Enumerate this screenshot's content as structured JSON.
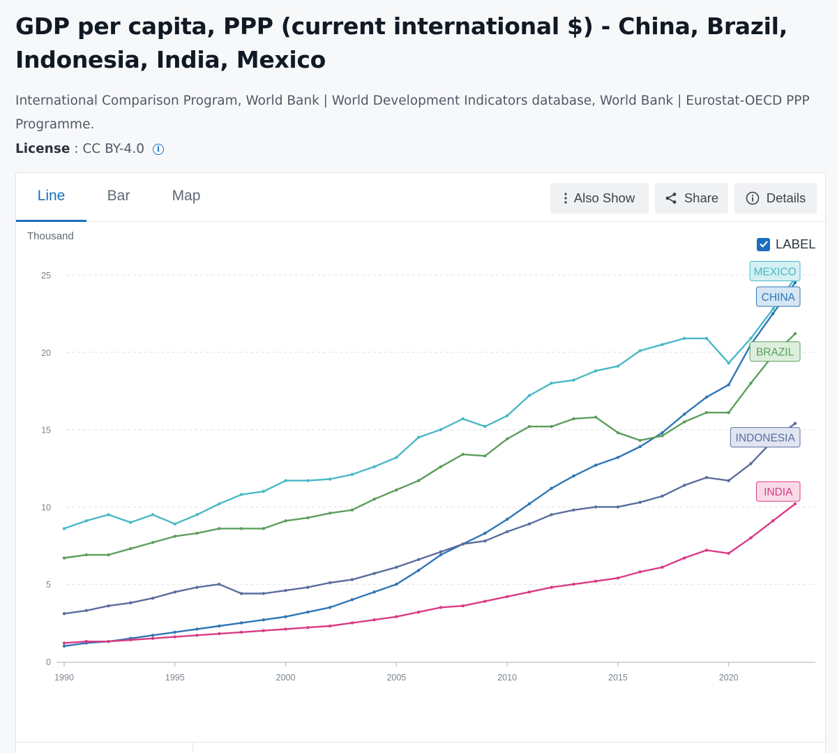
{
  "header": {
    "title": "GDP per capita, PPP (current international $) - China, Brazil, Indonesia, India, Mexico",
    "source": "International Comparison Program, World Bank | World Development Indicators database, World Bank | Eurostat-OECD PPP Programme.",
    "license_label": "License",
    "license_value": " : CC BY-4.0",
    "info_glyph": "i"
  },
  "tabs": [
    {
      "label": "Line",
      "active": true
    },
    {
      "label": "Bar",
      "active": false
    },
    {
      "label": "Map",
      "active": false
    }
  ],
  "toolbar": {
    "also_show": "Also Show",
    "share": "Share",
    "details": "Details"
  },
  "label_toggle": {
    "label": "LABEL",
    "checked": true
  },
  "colors": {
    "mexico": "#4ab8c6",
    "china": "#2e76b5",
    "brazil": "#5c9e5c",
    "indonesia": "#5b6d9e",
    "india": "#d93b85"
  },
  "chart_data": {
    "type": "line",
    "title": "GDP per capita, PPP (current international $) - China, Brazil, Indonesia, India, Mexico",
    "ylabel": "Thousand",
    "xlabel": "",
    "ylim": [
      0,
      25
    ],
    "xlim": [
      1990,
      2023
    ],
    "yticks": [
      0,
      5,
      10,
      15,
      20,
      25
    ],
    "xticks": [
      1990,
      1995,
      2000,
      2005,
      2010,
      2015,
      2020
    ],
    "grid": true,
    "x": [
      1990,
      1991,
      1992,
      1993,
      1994,
      1995,
      1996,
      1997,
      1998,
      1999,
      2000,
      2001,
      2002,
      2003,
      2004,
      2005,
      2006,
      2007,
      2008,
      2009,
      2010,
      2011,
      2012,
      2013,
      2014,
      2015,
      2016,
      2017,
      2018,
      2019,
      2020,
      2021,
      2022,
      2023
    ],
    "series": [
      {
        "name": "MEXICO",
        "color_key": "mexico",
        "values": [
          8.6,
          9.1,
          9.5,
          9.0,
          9.5,
          8.9,
          9.5,
          10.2,
          10.8,
          11.0,
          11.7,
          11.7,
          11.8,
          12.1,
          12.6,
          13.2,
          14.5,
          15.0,
          15.7,
          15.2,
          15.9,
          17.2,
          18.0,
          18.2,
          18.8,
          19.1,
          20.1,
          20.5,
          20.9,
          20.9,
          19.3,
          20.9,
          22.8,
          24.8
        ]
      },
      {
        "name": "CHINA",
        "color_key": "china",
        "values": [
          1.0,
          1.2,
          1.3,
          1.5,
          1.7,
          1.9,
          2.1,
          2.3,
          2.5,
          2.7,
          2.9,
          3.2,
          3.5,
          4.0,
          4.5,
          5.0,
          5.9,
          6.9,
          7.6,
          8.3,
          9.2,
          10.2,
          11.2,
          12.0,
          12.7,
          13.2,
          13.9,
          14.8,
          16.0,
          17.1,
          17.9,
          20.5,
          22.5,
          24.5
        ]
      },
      {
        "name": "BRAZIL",
        "color_key": "brazil",
        "values": [
          6.7,
          6.9,
          6.9,
          7.3,
          7.7,
          8.1,
          8.3,
          8.6,
          8.6,
          8.6,
          9.1,
          9.3,
          9.6,
          9.8,
          10.5,
          11.1,
          11.7,
          12.6,
          13.4,
          13.3,
          14.4,
          15.2,
          15.2,
          15.7,
          15.8,
          14.8,
          14.3,
          14.6,
          15.5,
          16.1,
          16.1,
          18.0,
          19.8,
          21.2
        ]
      },
      {
        "name": "INDONESIA",
        "color_key": "indonesia",
        "values": [
          3.1,
          3.3,
          3.6,
          3.8,
          4.1,
          4.5,
          4.8,
          5.0,
          4.4,
          4.4,
          4.6,
          4.8,
          5.1,
          5.3,
          5.7,
          6.1,
          6.6,
          7.1,
          7.6,
          7.8,
          8.4,
          8.9,
          9.5,
          9.8,
          10.0,
          10.0,
          10.3,
          10.7,
          11.4,
          11.9,
          11.7,
          12.8,
          14.3,
          15.4
        ]
      },
      {
        "name": "INDIA",
        "color_key": "india",
        "values": [
          1.2,
          1.3,
          1.3,
          1.4,
          1.5,
          1.6,
          1.7,
          1.8,
          1.9,
          2.0,
          2.1,
          2.2,
          2.3,
          2.5,
          2.7,
          2.9,
          3.2,
          3.5,
          3.6,
          3.9,
          4.2,
          4.5,
          4.8,
          5.0,
          5.2,
          5.4,
          5.8,
          6.1,
          6.7,
          7.2,
          7.0,
          8.0,
          9.1,
          10.2
        ]
      }
    ],
    "labels": [
      {
        "text": "MEXICO",
        "series": "MEXICO",
        "anchor_value": 25.25
      },
      {
        "text": "CHINA",
        "series": "CHINA",
        "anchor_value": 23.6
      },
      {
        "text": "BRAZIL",
        "series": "BRAZIL",
        "anchor_value": 20.05
      },
      {
        "text": "INDONESIA",
        "series": "INDONESIA",
        "anchor_value": 14.5
      },
      {
        "text": "INDIA",
        "series": "INDIA",
        "anchor_value": 11.0
      }
    ]
  }
}
